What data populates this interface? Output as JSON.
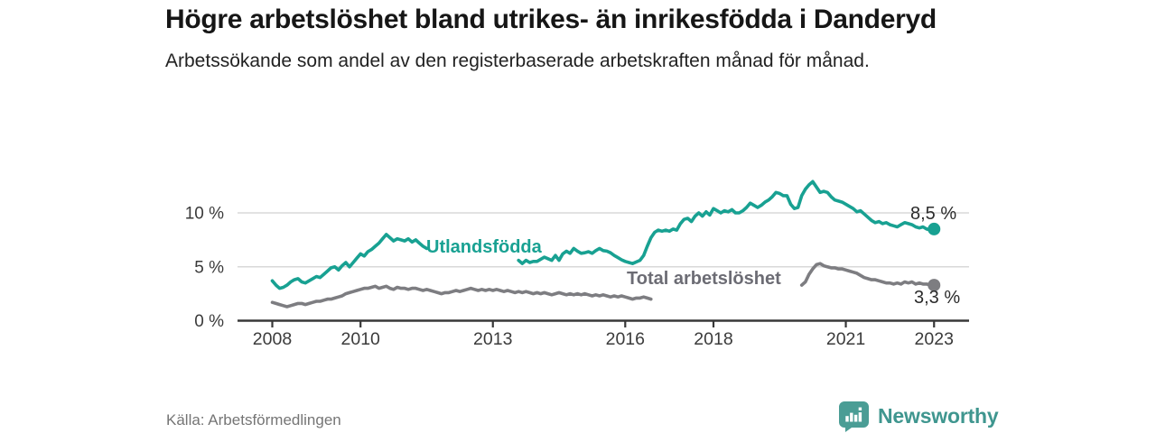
{
  "header": {
    "title": "Högre arbetslöshet bland utrikes- än inrikesfödda i Danderyd",
    "subtitle": "Arbetssökande som andel av den registerbaserade arbetskraften månad för månad."
  },
  "footer": {
    "source": "Källa: Arbetsförmedlingen",
    "brand": "Newsworthy"
  },
  "colors": {
    "teal_line": "#18A192",
    "gray_line": "#7D7D81",
    "grid": "#D8D8D8",
    "axis": "#383838",
    "tick_text": "#3B3B3B",
    "logo_teal": "#4A9D95",
    "brand_text_teal": "#3F968F"
  },
  "chart_data": {
    "type": "line",
    "title": "Högre arbetslöshet bland utrikes- än inrikesfödda i Danderyd",
    "xlabel": "",
    "ylabel": "Arbetssökande som andel av den registerbaserade arbetskraften",
    "grid": "horizontal-y",
    "legend_position": "inline-labels",
    "x_start_year": 2008,
    "x_step_months": 1,
    "xlim": [
      2007.2,
      2023.9
    ],
    "ylim": [
      0,
      13.5
    ],
    "x_ticks": [
      {
        "year": 2008,
        "label": "2008"
      },
      {
        "year": 2010,
        "label": "2010"
      },
      {
        "year": 2013,
        "label": "2013"
      },
      {
        "year": 2016,
        "label": "2016"
      },
      {
        "year": 2018,
        "label": "2018"
      },
      {
        "year": 2021,
        "label": "2021"
      },
      {
        "year": 2023,
        "label": "2023"
      }
    ],
    "y_ticks": [
      {
        "value": 0,
        "label": "0 %"
      },
      {
        "value": 5,
        "label": "5 %"
      },
      {
        "value": 10,
        "label": "10 %"
      }
    ],
    "series": [
      {
        "name": "Utlandsfödda",
        "label": "Utlandsfödda",
        "color": "#18A192",
        "end_label": "8,5 %",
        "end_value": 8.5,
        "values": [
          3.7,
          3.3,
          3.0,
          3.1,
          3.3,
          3.6,
          3.8,
          3.9,
          3.6,
          3.5,
          3.7,
          3.9,
          4.1,
          4.0,
          4.3,
          4.6,
          4.9,
          5.0,
          4.7,
          5.1,
          5.4,
          5.0,
          5.4,
          5.8,
          6.2,
          6.0,
          6.4,
          6.6,
          6.9,
          7.2,
          7.6,
          8.0,
          7.7,
          7.4,
          7.6,
          7.5,
          7.4,
          7.6,
          7.3,
          7.5,
          7.2,
          6.9,
          6.7,
          null,
          null,
          null,
          null,
          null,
          null,
          null,
          null,
          null,
          null,
          null,
          null,
          null,
          null,
          null,
          null,
          null,
          null,
          null,
          null,
          null,
          null,
          null,
          null,
          5.6,
          5.3,
          5.6,
          5.4,
          5.5,
          5.5,
          5.7,
          5.9,
          5.75,
          5.6,
          6.05,
          5.6,
          6.2,
          6.45,
          6.25,
          6.7,
          6.45,
          6.25,
          6.3,
          6.4,
          6.25,
          6.5,
          6.7,
          6.5,
          6.45,
          6.3,
          6.05,
          5.85,
          5.65,
          5.5,
          5.4,
          5.3,
          5.45,
          5.6,
          6.05,
          6.9,
          7.7,
          8.2,
          8.4,
          8.3,
          8.4,
          8.3,
          8.5,
          8.4,
          9.0,
          9.4,
          9.5,
          9.2,
          9.7,
          10.0,
          9.7,
          10.1,
          9.8,
          10.4,
          10.2,
          10.0,
          10.2,
          10.1,
          10.3,
          10.0,
          10.0,
          10.2,
          10.5,
          10.9,
          10.7,
          10.5,
          10.7,
          11.0,
          11.2,
          11.5,
          11.9,
          11.8,
          11.6,
          11.6,
          10.8,
          10.4,
          10.5,
          11.6,
          12.2,
          12.6,
          12.9,
          12.4,
          11.9,
          12.0,
          11.9,
          11.5,
          11.2,
          11.1,
          11.0,
          10.8,
          10.6,
          10.4,
          10.1,
          10.2,
          9.9,
          9.6,
          9.3,
          9.1,
          9.2,
          9.0,
          9.1,
          8.9,
          8.8,
          8.7,
          8.9,
          9.1,
          9.0,
          8.9,
          8.7,
          8.6,
          8.7,
          8.5,
          8.4,
          8.5
        ]
      },
      {
        "name": "Total arbetslöshet",
        "label": "Total arbetslöshet",
        "color": "#7D7D81",
        "end_label": "3,3 %",
        "end_value": 3.3,
        "values": [
          1.7,
          1.6,
          1.5,
          1.4,
          1.3,
          1.4,
          1.5,
          1.6,
          1.6,
          1.5,
          1.6,
          1.7,
          1.8,
          1.8,
          1.9,
          2.0,
          2.0,
          2.1,
          2.2,
          2.3,
          2.5,
          2.6,
          2.7,
          2.8,
          2.9,
          3.0,
          3.0,
          3.1,
          3.2,
          3.0,
          3.1,
          3.2,
          3.0,
          2.9,
          3.1,
          3.0,
          3.0,
          2.9,
          3.0,
          3.0,
          2.9,
          2.8,
          2.9,
          2.8,
          2.7,
          2.6,
          2.5,
          2.6,
          2.6,
          2.7,
          2.8,
          2.7,
          2.8,
          2.9,
          3.0,
          2.9,
          2.8,
          2.9,
          2.8,
          2.9,
          2.8,
          2.9,
          2.8,
          2.7,
          2.8,
          2.7,
          2.6,
          2.7,
          2.6,
          2.7,
          2.6,
          2.5,
          2.6,
          2.5,
          2.6,
          2.5,
          2.4,
          2.5,
          2.6,
          2.5,
          2.4,
          2.5,
          2.4,
          2.5,
          2.4,
          2.5,
          2.4,
          2.3,
          2.4,
          2.3,
          2.4,
          2.3,
          2.2,
          2.3,
          2.2,
          2.3,
          2.2,
          2.1,
          2.0,
          2.1,
          2.1,
          2.2,
          2.1,
          2.0,
          null,
          null,
          null,
          null,
          null,
          null,
          null,
          null,
          null,
          null,
          null,
          null,
          null,
          null,
          null,
          null,
          null,
          null,
          null,
          null,
          null,
          null,
          null,
          null,
          null,
          null,
          null,
          null,
          null,
          null,
          null,
          null,
          null,
          null,
          null,
          null,
          null,
          null,
          null,
          null,
          3.3,
          3.6,
          4.3,
          4.8,
          5.2,
          5.3,
          5.1,
          5.0,
          4.9,
          4.9,
          4.8,
          4.8,
          4.7,
          4.6,
          4.5,
          4.4,
          4.2,
          4.0,
          3.9,
          3.8,
          3.8,
          3.7,
          3.6,
          3.5,
          3.5,
          3.4,
          3.5,
          3.4,
          3.6,
          3.5,
          3.6,
          3.4,
          3.5,
          3.4,
          3.4,
          3.3,
          3.3
        ]
      }
    ]
  }
}
